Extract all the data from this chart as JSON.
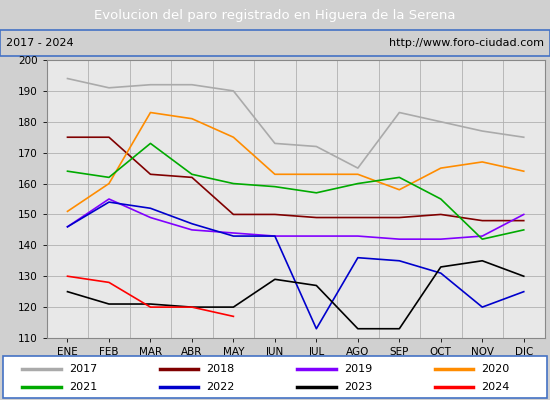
{
  "title": "Evolucion del paro registrado en Higuera de la Serena",
  "subtitle_left": "2017 - 2024",
  "subtitle_right": "http://www.foro-ciudad.com",
  "xlabel_ticks": [
    "ENE",
    "FEB",
    "MAR",
    "ABR",
    "MAY",
    "JUN",
    "JUL",
    "AGO",
    "SEP",
    "OCT",
    "NOV",
    "DIC"
  ],
  "ylim": [
    110,
    200
  ],
  "yticks": [
    110,
    120,
    130,
    140,
    150,
    160,
    170,
    180,
    190,
    200
  ],
  "series": {
    "2017": {
      "color": "#aaaaaa",
      "values": [
        194,
        191,
        192,
        192,
        190,
        173,
        172,
        165,
        183,
        180,
        177,
        175
      ]
    },
    "2018": {
      "color": "#800000",
      "values": [
        175,
        175,
        163,
        162,
        150,
        150,
        149,
        149,
        149,
        150,
        148,
        148
      ]
    },
    "2019": {
      "color": "#8000ff",
      "values": [
        146,
        155,
        149,
        145,
        144,
        143,
        143,
        143,
        142,
        142,
        143,
        150
      ]
    },
    "2020": {
      "color": "#ff8c00",
      "values": [
        151,
        160,
        183,
        181,
        175,
        163,
        163,
        163,
        158,
        165,
        167,
        164
      ]
    },
    "2021": {
      "color": "#00aa00",
      "values": [
        164,
        162,
        173,
        163,
        160,
        159,
        157,
        160,
        162,
        155,
        142,
        145
      ]
    },
    "2022": {
      "color": "#0000cc",
      "values": [
        146,
        154,
        152,
        147,
        143,
        143,
        113,
        136,
        135,
        131,
        120,
        125
      ]
    },
    "2023": {
      "color": "#000000",
      "values": [
        125,
        121,
        121,
        120,
        120,
        129,
        127,
        113,
        113,
        133,
        135,
        130
      ]
    },
    "2024": {
      "color": "#ff0000",
      "values": [
        130,
        128,
        120,
        120,
        117,
        null,
        null,
        null,
        null,
        null,
        null,
        null
      ]
    }
  },
  "title_bg": "#4472c4",
  "title_color": "#ffffff",
  "subtitle_bg": "#e8e8e8",
  "plot_bg": "#e8e8e8",
  "fig_bg": "#d0d0d0",
  "legend_bg": "#ffffff",
  "border_color": "#4472c4",
  "legend_order": [
    "2017",
    "2018",
    "2019",
    "2020",
    "2021",
    "2022",
    "2023",
    "2024"
  ]
}
